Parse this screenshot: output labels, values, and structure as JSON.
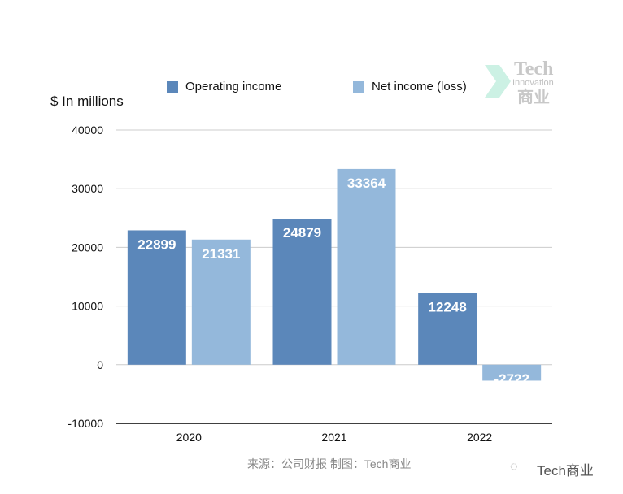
{
  "chart_data": {
    "type": "bar",
    "ylabel": "$ In millions",
    "categories": [
      "2020",
      "2021",
      "2022"
    ],
    "series": [
      {
        "name": "Operating income",
        "color": "#5b87ba",
        "values": [
          22899,
          24879,
          12248
        ]
      },
      {
        "name": "Net income (loss)",
        "color": "#94b8db",
        "values": [
          21331,
          33364,
          -2722
        ]
      }
    ],
    "ylim": [
      -10000,
      40000
    ],
    "yticks": [
      40000,
      30000,
      20000,
      10000,
      0,
      -10000
    ],
    "grid": true,
    "legend": "top",
    "data_labels": true
  },
  "source": "来源：公司财报 制图：Tech商业",
  "watermark": {
    "text": "Tech商业",
    "icon": "wechat-icon"
  },
  "logo": {
    "line1": "Tech",
    "line2": "Innovation",
    "line3": "商业"
  }
}
